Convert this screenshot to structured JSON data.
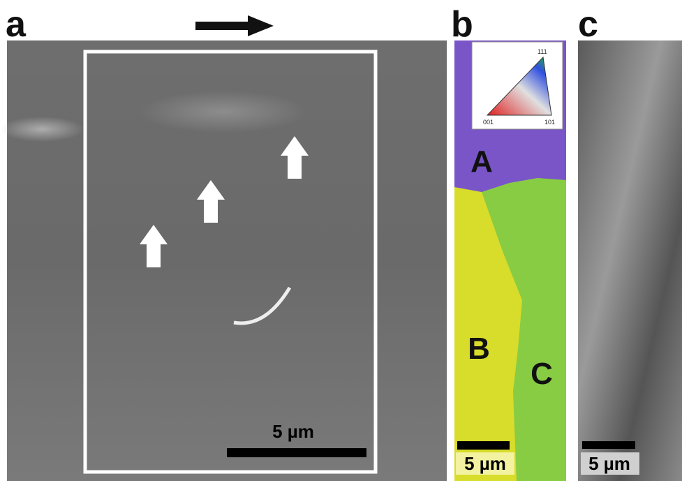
{
  "panels": [
    {
      "label": "a",
      "scale_bar": "5 µm"
    },
    {
      "label": "b",
      "scale_bar": "5 µm",
      "grains": [
        "A",
        "B",
        "C"
      ],
      "legend": {
        "corners": [
          "001",
          "101",
          "111"
        ]
      }
    },
    {
      "label": "c",
      "scale_bar": "5 µm"
    }
  ]
}
